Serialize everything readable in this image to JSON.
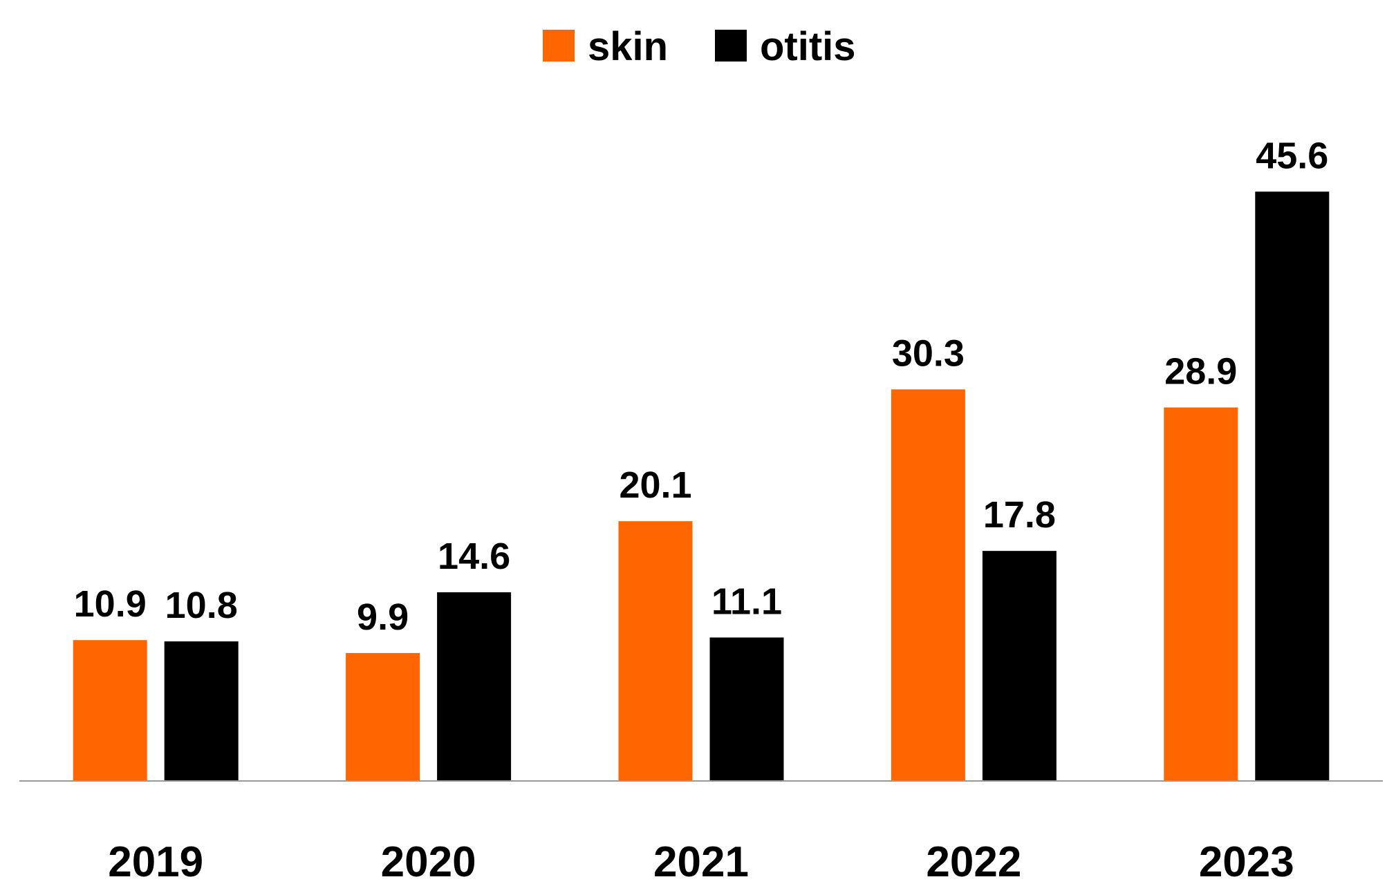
{
  "chart_data": {
    "type": "bar",
    "categories": [
      "2019",
      "2020",
      "2021",
      "2022",
      "2023"
    ],
    "series": [
      {
        "name": "skin",
        "values": [
          10.9,
          9.9,
          20.1,
          30.3,
          28.9
        ],
        "color": "#FF6600"
      },
      {
        "name": "otitis",
        "values": [
          10.8,
          14.6,
          11.1,
          17.8,
          45.6
        ],
        "color": "#000000"
      }
    ],
    "ylim": [
      0,
      52
    ],
    "grid": false,
    "legend_position": "top-center",
    "data_labels": true
  }
}
